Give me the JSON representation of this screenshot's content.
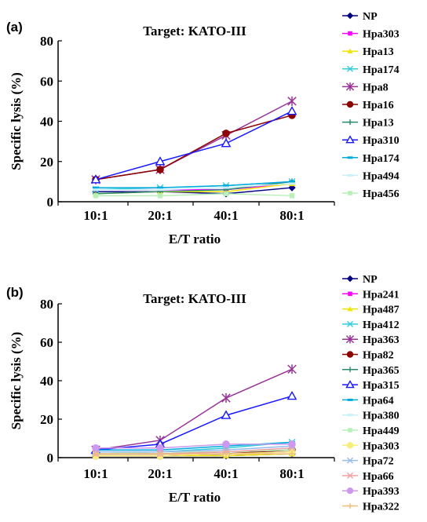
{
  "chart_data": [
    {
      "panel": "(a)",
      "type": "line",
      "title": "Target: KATO-III",
      "xlabel": "E/T ratio",
      "ylabel": "Specific lysis (%)",
      "categories": [
        "10:1",
        "20:1",
        "40:1",
        "80:1"
      ],
      "ylim": [
        0,
        80
      ],
      "yticks": [
        0,
        20,
        40,
        60,
        80
      ],
      "grid": false,
      "legend_position": "right",
      "series": [
        {
          "name": "NP",
          "color": "#000080",
          "marker": "diamond",
          "values": [
            5,
            5,
            4,
            7
          ]
        },
        {
          "name": "Hpa303",
          "color": "#ff00ff",
          "marker": "square",
          "values": [
            6,
            6,
            6,
            9
          ]
        },
        {
          "name": "Hpa13",
          "color": "#f2e600",
          "marker": "triangle",
          "values": [
            4,
            5,
            5,
            9
          ]
        },
        {
          "name": "Hpa174",
          "color": "#33ccdd",
          "marker": "x",
          "values": [
            6,
            7,
            8,
            10
          ]
        },
        {
          "name": "Hpa8",
          "color": "#993399",
          "marker": "asterisk",
          "values": [
            11,
            16,
            33,
            50
          ]
        },
        {
          "name": "Hpa16",
          "color": "#8b0000",
          "marker": "circle",
          "values": [
            11,
            16,
            34,
            43
          ]
        },
        {
          "name": "Hpa13",
          "color": "#2a8a6e",
          "marker": "plus",
          "values": [
            4,
            5,
            6,
            10
          ]
        },
        {
          "name": "Hpa310",
          "color": "#1a1aff",
          "marker": "triangle-open",
          "values": [
            11,
            20,
            29,
            45
          ]
        },
        {
          "name": "Hpa174",
          "color": "#00aadd",
          "marker": "dash",
          "values": [
            7,
            7,
            8,
            10
          ]
        },
        {
          "name": "Hpa494",
          "color": "#c8f0f8",
          "marker": "dash",
          "values": [
            6,
            6,
            7,
            9
          ]
        },
        {
          "name": "Hpa456",
          "color": "#b8f0b8",
          "marker": "square",
          "values": [
            3,
            3,
            4,
            3
          ]
        }
      ]
    },
    {
      "panel": "(b)",
      "type": "line",
      "title": "Target: KATO-III",
      "xlabel": "E/T ratio",
      "ylabel": "Specific lysis (%)",
      "categories": [
        "10:1",
        "20:1",
        "40:1",
        "80:1"
      ],
      "ylim": [
        0,
        80
      ],
      "yticks": [
        0,
        20,
        40,
        60,
        80
      ],
      "grid": false,
      "legend_position": "right",
      "series": [
        {
          "name": "NP",
          "color": "#000080",
          "marker": "diamond",
          "values": [
            1,
            1,
            1,
            2
          ]
        },
        {
          "name": "Hpa241",
          "color": "#ff00ff",
          "marker": "square",
          "values": [
            2,
            2,
            2,
            3
          ]
        },
        {
          "name": "Hpa487",
          "color": "#f2e600",
          "marker": "triangle",
          "values": [
            1,
            1,
            1,
            2
          ]
        },
        {
          "name": "Hpa412",
          "color": "#33ccdd",
          "marker": "x",
          "values": [
            3,
            3,
            5,
            8
          ]
        },
        {
          "name": "Hpa363",
          "color": "#993399",
          "marker": "asterisk",
          "values": [
            4,
            9,
            31,
            46
          ]
        },
        {
          "name": "Hpa82",
          "color": "#8b0000",
          "marker": "circle",
          "values": [
            1,
            1,
            2,
            4
          ]
        },
        {
          "name": "Hpa365",
          "color": "#2a8a6e",
          "marker": "plus",
          "values": [
            2,
            2,
            3,
            4
          ]
        },
        {
          "name": "Hpa315",
          "color": "#1a1aff",
          "marker": "triangle-open",
          "values": [
            4,
            7,
            22,
            32
          ]
        },
        {
          "name": "Hpa64",
          "color": "#00aadd",
          "marker": "dash",
          "values": [
            4,
            4,
            6,
            8
          ]
        },
        {
          "name": "Hpa380",
          "color": "#c8f0f8",
          "marker": "dash",
          "values": [
            3,
            3,
            4,
            6
          ]
        },
        {
          "name": "Hpa449",
          "color": "#b8f0b8",
          "marker": "square",
          "values": [
            2,
            3,
            3,
            4
          ]
        },
        {
          "name": "Hpa303",
          "color": "#f5f07a",
          "marker": "circle",
          "values": [
            1,
            1,
            2,
            3
          ]
        },
        {
          "name": "Hpa72",
          "color": "#99bbee",
          "marker": "x",
          "values": [
            3,
            3,
            4,
            6
          ]
        },
        {
          "name": "Hpa66",
          "color": "#f2a0a0",
          "marker": "x",
          "values": [
            2,
            2,
            3,
            5
          ]
        },
        {
          "name": "Hpa393",
          "color": "#cc99ee",
          "marker": "circle",
          "values": [
            5,
            5,
            7,
            7
          ]
        },
        {
          "name": "Hpa322",
          "color": "#f0c080",
          "marker": "plus",
          "values": [
            2,
            2,
            2,
            2
          ]
        }
      ]
    }
  ]
}
